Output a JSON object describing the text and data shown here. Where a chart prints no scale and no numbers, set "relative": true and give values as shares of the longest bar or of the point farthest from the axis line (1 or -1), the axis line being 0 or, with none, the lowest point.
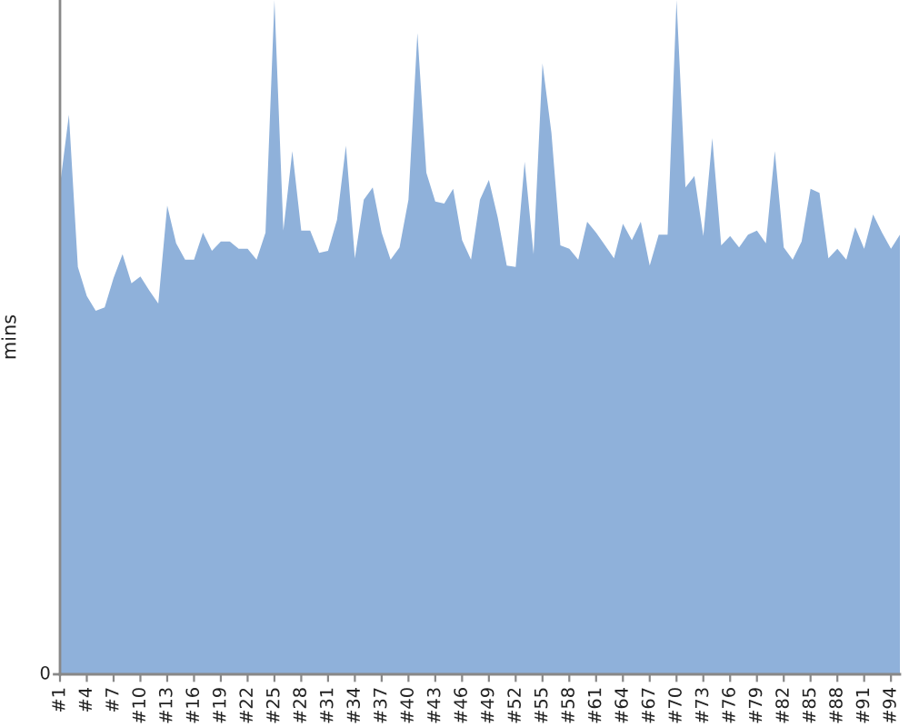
{
  "chart_data": {
    "type": "area",
    "ylabel": "mins",
    "relative": true,
    "annotations": [
      "0"
    ],
    "color": "#8fb1da",
    "categories": [
      "#1",
      null,
      null,
      "#4",
      null,
      null,
      "#7",
      null,
      null,
      "#10",
      null,
      null,
      "#13",
      null,
      null,
      "#16",
      null,
      null,
      "#19",
      null,
      null,
      "#22",
      null,
      null,
      "#25",
      null,
      null,
      "#28",
      null,
      null,
      "#31",
      null,
      null,
      "#34",
      null,
      null,
      "#37",
      null,
      null,
      "#40",
      null,
      null,
      "#43",
      null,
      null,
      "#46",
      null,
      null,
      "#49",
      null,
      null,
      "#52",
      null,
      null,
      "#55",
      null,
      null,
      "#58",
      null,
      null,
      "#61",
      null,
      null,
      "#64",
      null,
      null,
      "#67",
      null,
      null,
      "#70",
      null,
      null,
      "#73",
      null,
      null,
      "#76",
      null,
      null,
      "#79",
      null,
      null,
      "#82",
      null,
      null,
      "#85",
      null,
      null,
      "#88",
      null,
      null,
      "#91",
      null,
      null,
      "#94",
      null
    ],
    "values": [
      0.725,
      0.83,
      0.604,
      0.561,
      0.539,
      0.544,
      0.588,
      0.623,
      0.58,
      0.59,
      0.569,
      0.55,
      0.695,
      0.639,
      0.615,
      0.615,
      0.655,
      0.628,
      0.642,
      0.642,
      0.631,
      0.631,
      0.615,
      0.655,
      1,
      0.658,
      0.776,
      0.658,
      0.658,
      0.625,
      0.628,
      0.674,
      0.784,
      0.617,
      0.704,
      0.722,
      0.655,
      0.615,
      0.633,
      0.704,
      0.951,
      0.744,
      0.701,
      0.698,
      0.72,
      0.644,
      0.615,
      0.704,
      0.733,
      0.677,
      0.606,
      0.604,
      0.76,
      0.623,
      0.906,
      0.803,
      0.636,
      0.631,
      0.615,
      0.671,
      0.655,
      0.636,
      0.617,
      0.668,
      0.644,
      0.671,
      0.606,
      0.652,
      0.652,
      1,
      0.722,
      0.739,
      0.65,
      0.795,
      0.636,
      0.65,
      0.633,
      0.652,
      0.658,
      0.639,
      0.776,
      0.633,
      0.615,
      0.642,
      0.72,
      0.714,
      0.617,
      0.631,
      0.615,
      0.663,
      0.631,
      0.682,
      0.655,
      0.631,
      0.652
    ]
  }
}
